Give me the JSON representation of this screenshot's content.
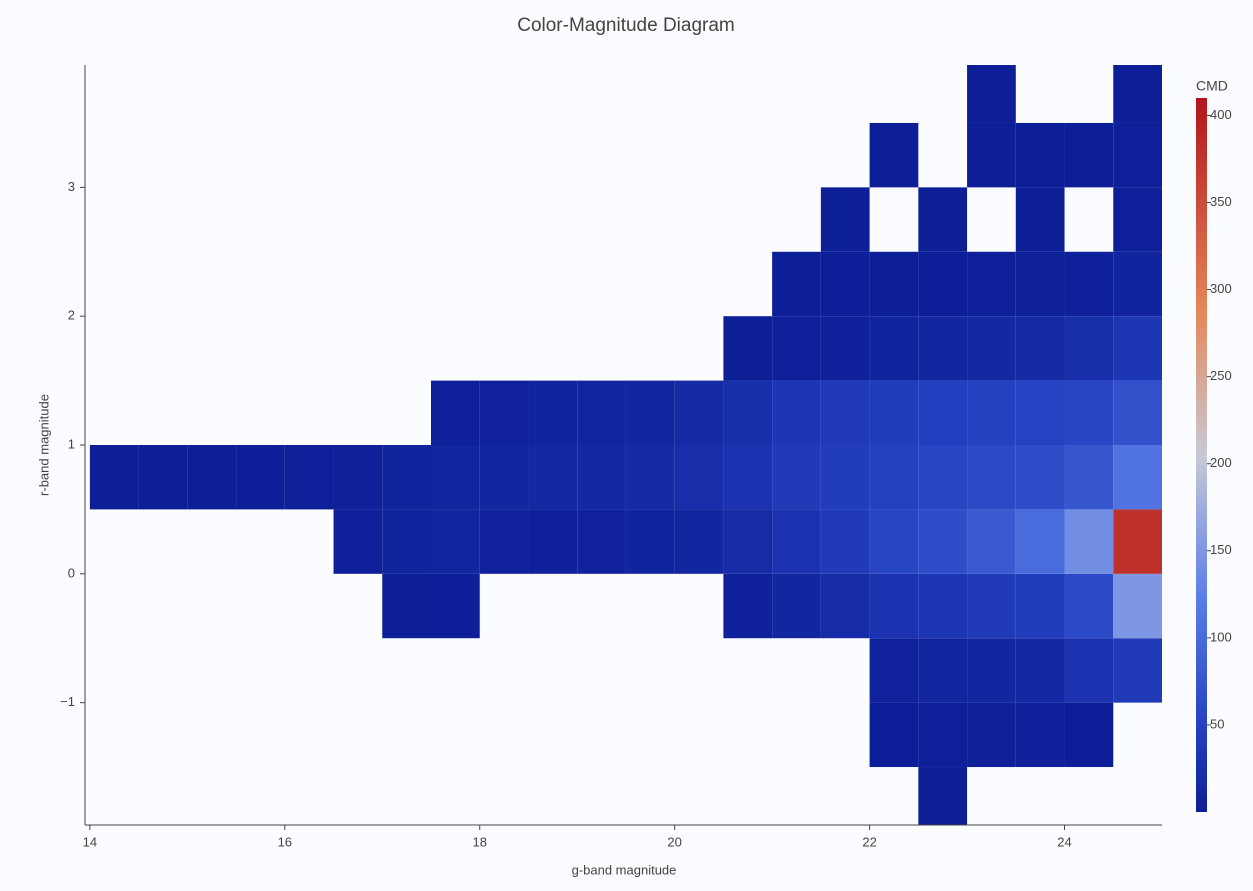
{
  "chart_data": {
    "type": "heatmap",
    "title": "Color-Magnitude Diagram",
    "x_label": "g-band magnitude",
    "y_label": "r-band magnitude",
    "colorbar_title": "CMD",
    "xbins": [
      14,
      14.5,
      15,
      15.5,
      16,
      16.5,
      17,
      17.5,
      18,
      18.5,
      19,
      19.5,
      20,
      20.5,
      21,
      21.5,
      22,
      22.5,
      23,
      23.5,
      24,
      24.5,
      25
    ],
    "ybins": [
      -2,
      -1.5,
      -1,
      -0.5,
      0,
      0.5,
      1,
      1.5,
      2,
      2.5,
      3,
      3.5,
      4
    ],
    "z": [
      [
        null,
        null,
        null,
        null,
        null,
        null,
        null,
        null,
        null,
        null,
        null,
        null,
        null,
        null,
        null,
        null,
        null,
        1,
        null,
        null,
        null,
        null
      ],
      [
        null,
        null,
        null,
        null,
        null,
        null,
        null,
        null,
        null,
        null,
        null,
        null,
        null,
        null,
        null,
        null,
        2,
        3,
        4,
        5,
        2,
        null
      ],
      [
        null,
        null,
        null,
        null,
        null,
        null,
        null,
        null,
        null,
        null,
        null,
        null,
        null,
        null,
        null,
        null,
        6,
        10,
        12,
        15,
        30,
        40
      ],
      [
        null,
        null,
        null,
        null,
        null,
        null,
        1,
        2,
        null,
        null,
        null,
        null,
        null,
        5,
        12,
        20,
        30,
        35,
        40,
        45,
        60,
        150
      ],
      [
        null,
        null,
        null,
        null,
        null,
        3,
        8,
        10,
        6,
        5,
        6,
        8,
        12,
        20,
        30,
        40,
        55,
        65,
        80,
        100,
        140,
        380
      ],
      [
        1,
        1,
        1,
        2,
        3,
        4,
        8,
        10,
        12,
        14,
        15,
        18,
        22,
        30,
        40,
        45,
        50,
        55,
        60,
        65,
        75,
        110
      ],
      [
        null,
        null,
        null,
        null,
        null,
        null,
        null,
        3,
        6,
        8,
        10,
        12,
        18,
        25,
        35,
        40,
        45,
        48,
        50,
        52,
        55,
        70
      ],
      [
        null,
        null,
        null,
        null,
        null,
        null,
        null,
        null,
        null,
        null,
        null,
        null,
        null,
        1,
        3,
        5,
        8,
        12,
        15,
        18,
        25,
        35
      ],
      [
        null,
        null,
        null,
        null,
        null,
        null,
        null,
        null,
        null,
        null,
        null,
        null,
        null,
        null,
        1,
        2,
        1,
        2,
        3,
        4,
        5,
        8
      ],
      [
        null,
        null,
        null,
        null,
        null,
        null,
        null,
        null,
        null,
        null,
        null,
        null,
        null,
        null,
        null,
        1,
        null,
        1,
        null,
        1,
        null,
        3
      ],
      [
        null,
        null,
        null,
        null,
        null,
        null,
        null,
        null,
        null,
        null,
        null,
        null,
        null,
        null,
        null,
        null,
        1,
        null,
        1,
        1,
        1,
        3
      ],
      [
        null,
        null,
        null,
        null,
        null,
        null,
        null,
        null,
        null,
        null,
        null,
        null,
        null,
        null,
        null,
        null,
        null,
        null,
        1,
        null,
        null,
        1
      ]
    ],
    "xlim": [
      13.95,
      25
    ],
    "ylim": [
      -1.95,
      3.95
    ],
    "xticks": [
      14,
      16,
      18,
      20,
      22,
      24
    ],
    "yticks": [
      {
        "value": -1,
        "label": "−1"
      },
      0,
      1,
      2,
      3
    ],
    "zlim": [
      0,
      410
    ],
    "cticks": [
      50,
      100,
      150,
      200,
      250,
      300,
      350,
      400
    ],
    "colorscale": [
      [
        0,
        "#0c1e96"
      ],
      [
        0.12,
        "#2440c0"
      ],
      [
        0.3,
        "#5a7ee8"
      ],
      [
        0.5,
        "#c8c9d6"
      ],
      [
        0.7,
        "#e4885a"
      ],
      [
        1,
        "#b2141c"
      ]
    ],
    "grid": false
  }
}
